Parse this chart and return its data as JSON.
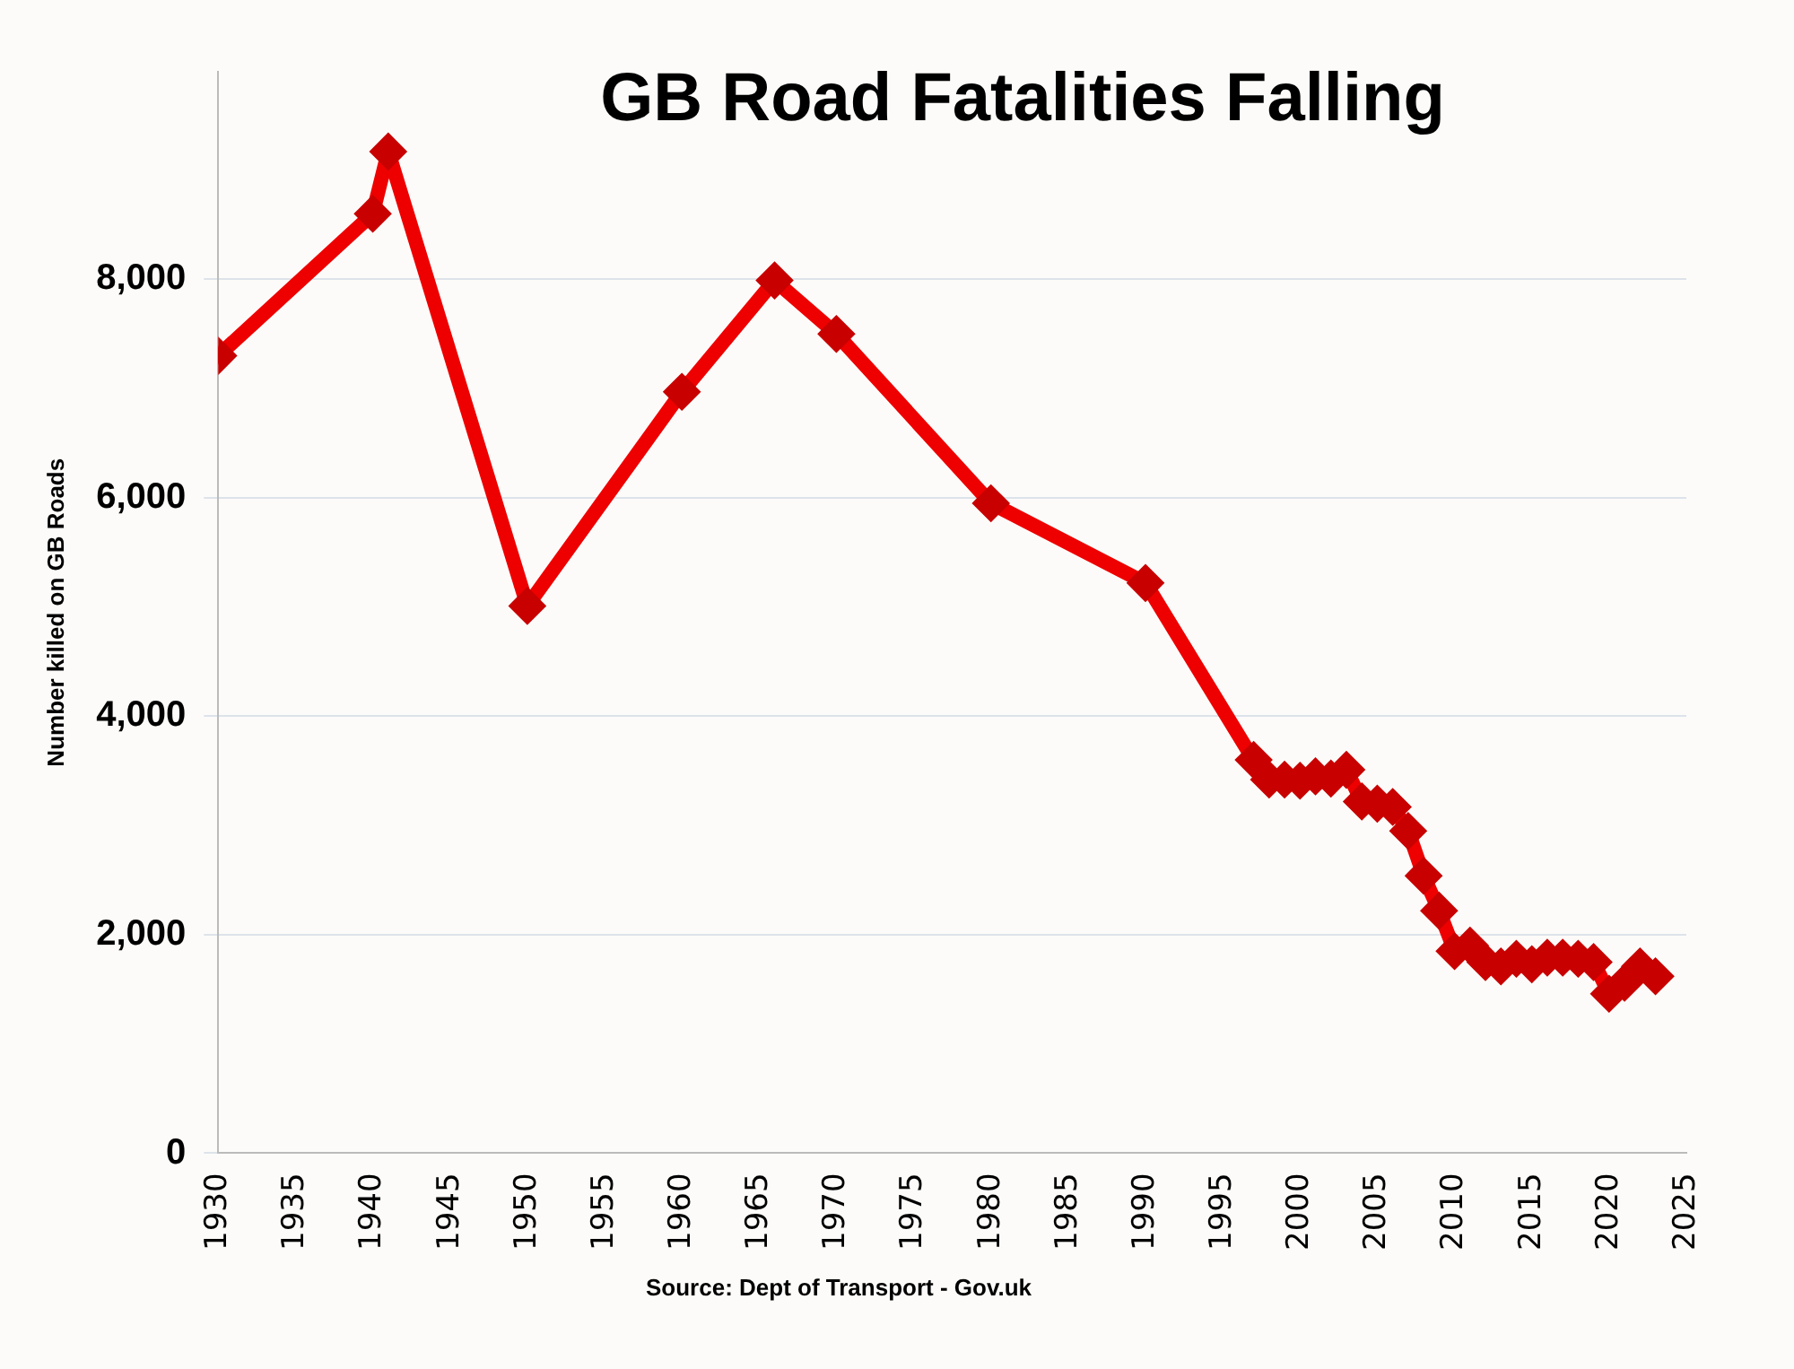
{
  "chart_data": {
    "type": "line",
    "title": "GB Road Fatalities Falling",
    "ylabel": "Number killed on GB Roads",
    "annotations": [
      "Source: Dept of Transport - Gov.uk"
    ],
    "x": [
      1930,
      1940,
      1941,
      1950,
      1960,
      1966,
      1970,
      1980,
      1990,
      1997,
      1998,
      1999,
      2000,
      2001,
      2002,
      2003,
      2004,
      2005,
      2006,
      2007,
      2008,
      2009,
      2010,
      2011,
      2012,
      2013,
      2014,
      2015,
      2016,
      2017,
      2018,
      2019,
      2020,
      2021,
      2022,
      2023
    ],
    "series": [
      {
        "color": "#ee0000",
        "values": [
          7300,
          8600,
          9170,
          5010,
          6970,
          7990,
          7500,
          5950,
          5220,
          3600,
          3420,
          3420,
          3410,
          3450,
          3430,
          3510,
          3220,
          3200,
          3170,
          2950,
          2540,
          2220,
          1850,
          1900,
          1750,
          1710,
          1780,
          1730,
          1790,
          1790,
          1780,
          1750,
          1460,
          1560,
          1710,
          1620
        ]
      }
    ],
    "xlim": [
      1930,
      2025
    ],
    "xticks": [
      1930,
      1935,
      1940,
      1945,
      1950,
      1955,
      1960,
      1965,
      1970,
      1975,
      1980,
      1985,
      1990,
      1995,
      2000,
      2005,
      2010,
      2015,
      2020,
      2025
    ],
    "ylim": [
      0,
      9900
    ],
    "yticks": [
      {
        "value": 0,
        "label": "0"
      },
      {
        "value": 2000,
        "label": "2,000"
      },
      {
        "value": 4000,
        "label": "4,000"
      },
      {
        "value": 6000,
        "label": "6,000"
      },
      {
        "value": 8000,
        "label": "8,000"
      }
    ],
    "grid": "y",
    "legend": false,
    "marker": "diamond",
    "line_style": "solid"
  }
}
